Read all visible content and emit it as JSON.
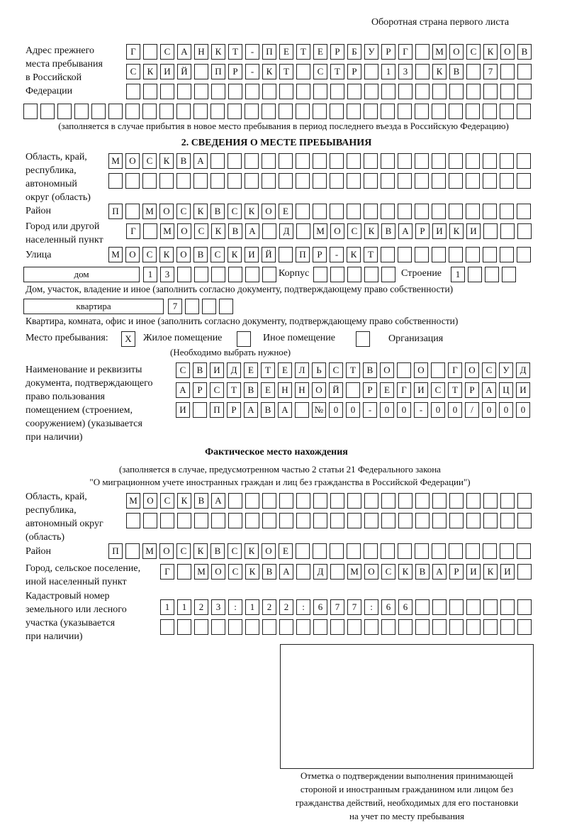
{
  "header": "Оборотная страна первого листа",
  "prev_address": {
    "label": "Адрес прежнего\nместа пребывания\nв Российской\nФедерации",
    "rows": [
      [
        "Г",
        "",
        "С",
        "А",
        "Н",
        "К",
        "Т",
        "-",
        "П",
        "Е",
        "Т",
        "Е",
        "Р",
        "Б",
        "У",
        "Р",
        "Г",
        "",
        "М",
        "О",
        "С",
        "К",
        "О",
        "В"
      ],
      [
        "С",
        "К",
        "И",
        "Й",
        "",
        "П",
        "Р",
        "-",
        "К",
        "Т",
        "",
        "С",
        "Т",
        "Р",
        "",
        "1",
        "3",
        "",
        "К",
        "В",
        "",
        "7",
        "",
        ""
      ],
      [
        "",
        "",
        "",
        "",
        "",
        "",
        "",
        "",
        "",
        "",
        "",
        "",
        "",
        "",
        "",
        "",
        "",
        "",
        "",
        "",
        "",
        "",
        "",
        ""
      ],
      [
        "",
        "",
        "",
        "",
        "",
        "",
        "",
        "",
        "",
        "",
        "",
        "",
        "",
        "",
        "",
        "",
        "",
        "",
        "",
        "",
        "",
        "",
        "",
        "",
        "",
        "",
        "",
        "",
        "",
        ""
      ]
    ],
    "note": "(заполняется в случае прибытия в новое место пребывания в период последнего въезда в Российскую Федерацию)"
  },
  "section2": {
    "title": "2. СВЕДЕНИЯ О МЕСТЕ ПРЕБЫВАНИЯ",
    "region_label": "Область, край,\nреспублика,\nавтономный\nокруг (область)",
    "region_rows": [
      [
        "М",
        "О",
        "С",
        "К",
        "В",
        "А",
        "",
        "",
        "",
        "",
        "",
        "",
        "",
        "",
        "",
        "",
        "",
        "",
        "",
        "",
        "",
        "",
        "",
        "",
        ""
      ],
      [
        "",
        "",
        "",
        "",
        "",
        "",
        "",
        "",
        "",
        "",
        "",
        "",
        "",
        "",
        "",
        "",
        "",
        "",
        "",
        "",
        "",
        "",
        "",
        "",
        ""
      ]
    ],
    "district_label": "Район",
    "district_row": [
      "П",
      "",
      "М",
      "О",
      "С",
      "К",
      "В",
      "С",
      "К",
      "О",
      "Е",
      "",
      "",
      "",
      "",
      "",
      "",
      "",
      "",
      "",
      "",
      "",
      "",
      "",
      ""
    ],
    "city_label": "Город или другой\nнаселенный пункт",
    "city_row": [
      "Г",
      "",
      "М",
      "О",
      "С",
      "К",
      "В",
      "А",
      "",
      "Д",
      "",
      "М",
      "О",
      "С",
      "К",
      "В",
      "А",
      "Р",
      "И",
      "К",
      "И",
      "",
      "",
      ""
    ],
    "street_label": "Улица",
    "street_row": [
      "М",
      "О",
      "С",
      "К",
      "О",
      "В",
      "С",
      "К",
      "И",
      "Й",
      "",
      "П",
      "Р",
      "-",
      "К",
      "Т",
      "",
      "",
      "",
      "",
      "",
      "",
      "",
      "",
      ""
    ],
    "house_type": "дом",
    "house_cells": [
      "1",
      "3",
      "",
      "",
      "",
      "",
      "",
      ""
    ],
    "korpus_label": "Корпус",
    "korpus_cells": [
      "",
      "",
      "",
      "",
      ""
    ],
    "building_label": "Строение",
    "building_cells": [
      "1",
      "",
      "",
      ""
    ],
    "house_note": "Дом, участок, владение и иное (заполнить согласно документу, подтверждающему право собственности)",
    "flat_type": "квартира",
    "flat_cells": [
      "7",
      "",
      "",
      ""
    ],
    "flat_note": "Квартира, комната, офис и иное (заполнить согласно документу, подтверждающему право собственности)",
    "stay_label": "Место пребывания:",
    "stay_options": [
      {
        "label": "Жилое помещение",
        "mark": "X"
      },
      {
        "label": "Иное помещение",
        "mark": ""
      },
      {
        "label": "Организация",
        "mark": ""
      }
    ],
    "stay_note": "(Необходимо выбрать нужное)",
    "doc_label": "Наименование и реквизиты\nдокумента, подтверждающего\nправо пользования\nпомещением (строением,\nсооружением) (указывается\nпри наличии)",
    "doc_rows": [
      [
        "С",
        "В",
        "И",
        "Д",
        "Е",
        "Т",
        "Е",
        "Л",
        "Ь",
        "С",
        "Т",
        "В",
        "О",
        "",
        "О",
        "",
        "Г",
        "О",
        "С",
        "У",
        "Д"
      ],
      [
        "А",
        "Р",
        "С",
        "Т",
        "В",
        "Е",
        "Н",
        "Н",
        "О",
        "Й",
        "",
        "Р",
        "Е",
        "Г",
        "И",
        "С",
        "Т",
        "Р",
        "А",
        "Ц",
        "И"
      ],
      [
        "И",
        "",
        "П",
        "Р",
        "А",
        "В",
        "А",
        "",
        "№",
        "0",
        "0",
        "-",
        "0",
        "0",
        "-",
        "0",
        "0",
        "/",
        "0",
        "0",
        "0"
      ]
    ]
  },
  "actual": {
    "title": "Фактическое место нахождения",
    "note1": "(заполняется в случае, предусмотренном частью 2 статьи 21 Федерального закона",
    "note2": "\"О миграционном учете иностранных граждан и лиц без гражданства в Российской Федерации\")",
    "region_label": "Область, край,\nреспублика,\nавтономный округ\n(область)",
    "region_rows": [
      [
        "М",
        "О",
        "С",
        "К",
        "В",
        "А",
        "",
        "",
        "",
        "",
        "",
        "",
        "",
        "",
        "",
        "",
        "",
        "",
        "",
        "",
        "",
        "",
        "",
        ""
      ],
      [
        "",
        "",
        "",
        "",
        "",
        "",
        "",
        "",
        "",
        "",
        "",
        "",
        "",
        "",
        "",
        "",
        "",
        "",
        "",
        "",
        "",
        "",
        "",
        ""
      ]
    ],
    "district_label": "Район",
    "district_row": [
      "П",
      "",
      "М",
      "О",
      "С",
      "К",
      "В",
      "С",
      "К",
      "О",
      "Е",
      "",
      "",
      "",
      "",
      "",
      "",
      "",
      "",
      "",
      "",
      "",
      "",
      "",
      ""
    ],
    "city_label": "Город, сельское поселение,\nиной населенный пункт",
    "city_row": [
      "Г",
      "",
      "М",
      "О",
      "С",
      "К",
      "В",
      "А",
      "",
      "Д",
      "",
      "М",
      "О",
      "С",
      "К",
      "В",
      "А",
      "Р",
      "И",
      "К",
      "И",
      ""
    ],
    "cadastral_label": "Кадастровый номер\nземельного или лесного\nучастка (указывается\nпри наличии)",
    "cadastral_rows": [
      [
        "1",
        "1",
        "2",
        "3",
        ":",
        "1",
        "2",
        "2",
        ":",
        "6",
        "7",
        "7",
        ":",
        "6",
        "6",
        "",
        "",
        "",
        "",
        "",
        "",
        ""
      ],
      [
        "",
        "",
        "",
        "",
        "",
        "",
        "",
        "",
        "",
        "",
        "",
        "",
        "",
        "",
        "",
        "",
        "",
        "",
        "",
        "",
        "",
        ""
      ]
    ]
  },
  "confirmation_caption": "Отметка о подтверждении выполнения принимающей\nстороной и иностранным гражданином или лицом без\nгражданства действий, необходимых для его постановки\nна учет по месту пребывания"
}
